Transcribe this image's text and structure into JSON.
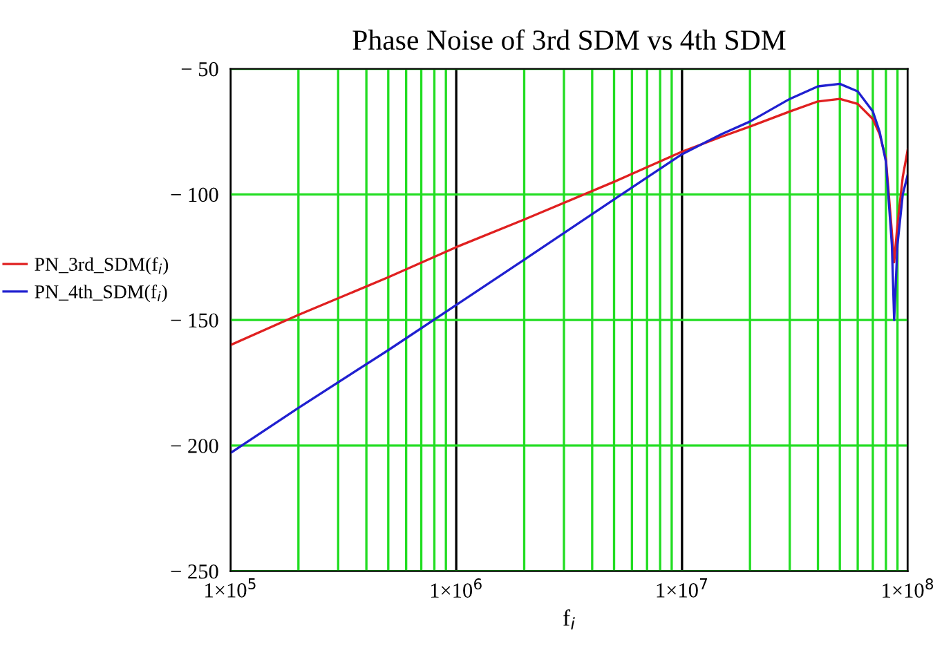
{
  "chart_data": {
    "type": "line",
    "title": "Phase Noise of 3rd SDM vs 4th SDM",
    "xlabel": "f$_{i}$",
    "x": [
      100000,
      200000,
      500000,
      1000000,
      2000000,
      5000000,
      10000000,
      15000000,
      20000000,
      30000000,
      40000000,
      50000000,
      60000000,
      70000000,
      75000000,
      80000000,
      85000000,
      87000000,
      90000000,
      95000000,
      100000000
    ],
    "series": [
      {
        "name": "PN_3rd_SDM(f$_{i}$)",
        "color": "#e02020",
        "values": [
          -160,
          -148,
          -133,
          -121,
          -110,
          -95,
          -83,
          -77,
          -73,
          -67,
          -63,
          -62,
          -64,
          -70,
          -76,
          -86,
          -115,
          -127,
          -112,
          -93,
          -82
        ]
      },
      {
        "name": "PN_4th_SDM(f$_{i}$)",
        "color": "#2020d0",
        "values": [
          -203,
          -185,
          -162,
          -144,
          -126,
          -102,
          -84,
          -76,
          -71,
          -62,
          -57,
          -56,
          -59,
          -67,
          -75,
          -87,
          -120,
          -150,
          -120,
          -100,
          -92
        ]
      }
    ],
    "log": "x",
    "xlim": [
      100000,
      100000000
    ],
    "xticks": [
      {
        "value": 100000,
        "label": "1×10$^{5}$"
      },
      {
        "value": 200000,
        "label": null
      },
      {
        "value": 300000,
        "label": null
      },
      {
        "value": 400000,
        "label": null
      },
      {
        "value": 500000,
        "label": null
      },
      {
        "value": 600000,
        "label": null
      },
      {
        "value": 700000,
        "label": null
      },
      {
        "value": 800000,
        "label": null
      },
      {
        "value": 900000,
        "label": null
      },
      {
        "value": 1000000,
        "label": "1×10$^{6}$"
      },
      {
        "value": 2000000,
        "label": null
      },
      {
        "value": 3000000,
        "label": null
      },
      {
        "value": 4000000,
        "label": null
      },
      {
        "value": 5000000,
        "label": null
      },
      {
        "value": 6000000,
        "label": null
      },
      {
        "value": 7000000,
        "label": null
      },
      {
        "value": 8000000,
        "label": null
      },
      {
        "value": 9000000,
        "label": null
      },
      {
        "value": 10000000,
        "label": "1×10$^{7}$"
      },
      {
        "value": 20000000,
        "label": null
      },
      {
        "value": 30000000,
        "label": null
      },
      {
        "value": 40000000,
        "label": null
      },
      {
        "value": 50000000,
        "label": null
      },
      {
        "value": 60000000,
        "label": null
      },
      {
        "value": 70000000,
        "label": null
      },
      {
        "value": 80000000,
        "label": null
      },
      {
        "value": 90000000,
        "label": null
      },
      {
        "value": 100000000,
        "label": "1×10$^{8}$"
      }
    ],
    "ylim": [
      -250,
      -50
    ],
    "yticks": [
      {
        "value": -250,
        "label": "− 250"
      },
      {
        "value": -200,
        "label": "− 200"
      },
      {
        "value": -150,
        "label": "− 150"
      },
      {
        "value": -100,
        "label": "− 100"
      },
      {
        "value": -50,
        "label": "− 50"
      }
    ],
    "grid": true,
    "legend": "left",
    "marker": "none",
    "line_style": "solid"
  }
}
